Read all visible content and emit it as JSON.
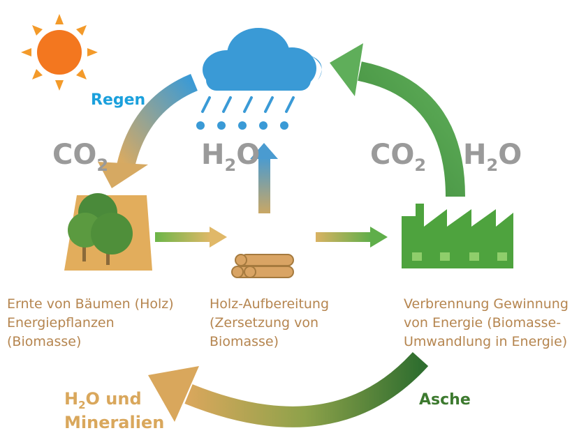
{
  "cycle": {
    "rain": "Regen",
    "co2_left": {
      "main": "CO",
      "sub": "2"
    },
    "h2o_center": {
      "pre": "H",
      "sub": "2",
      "post": "O"
    },
    "co2_right": {
      "main": "CO",
      "sub": "2"
    },
    "h2o_right": {
      "pre": "H",
      "sub": "2",
      "post": "O"
    },
    "stages": [
      {
        "lines": [
          "Ernte von Bäumen (Holz)",
          "Energiepflanzen",
          "(Biomasse)"
        ]
      },
      {
        "lines": [
          "Holz-Aufbereitung",
          "(Zersetzung von",
          "Biomasse)"
        ]
      },
      {
        "lines": [
          "Verbrennung Gewinnung",
          "von Energie (Biomasse-",
          "Umwandlung in Energie)"
        ]
      }
    ],
    "return_left": {
      "pre": "H",
      "sub": "2",
      "post": "O und",
      "line2": "Mineralien"
    },
    "ash": "Asche"
  }
}
